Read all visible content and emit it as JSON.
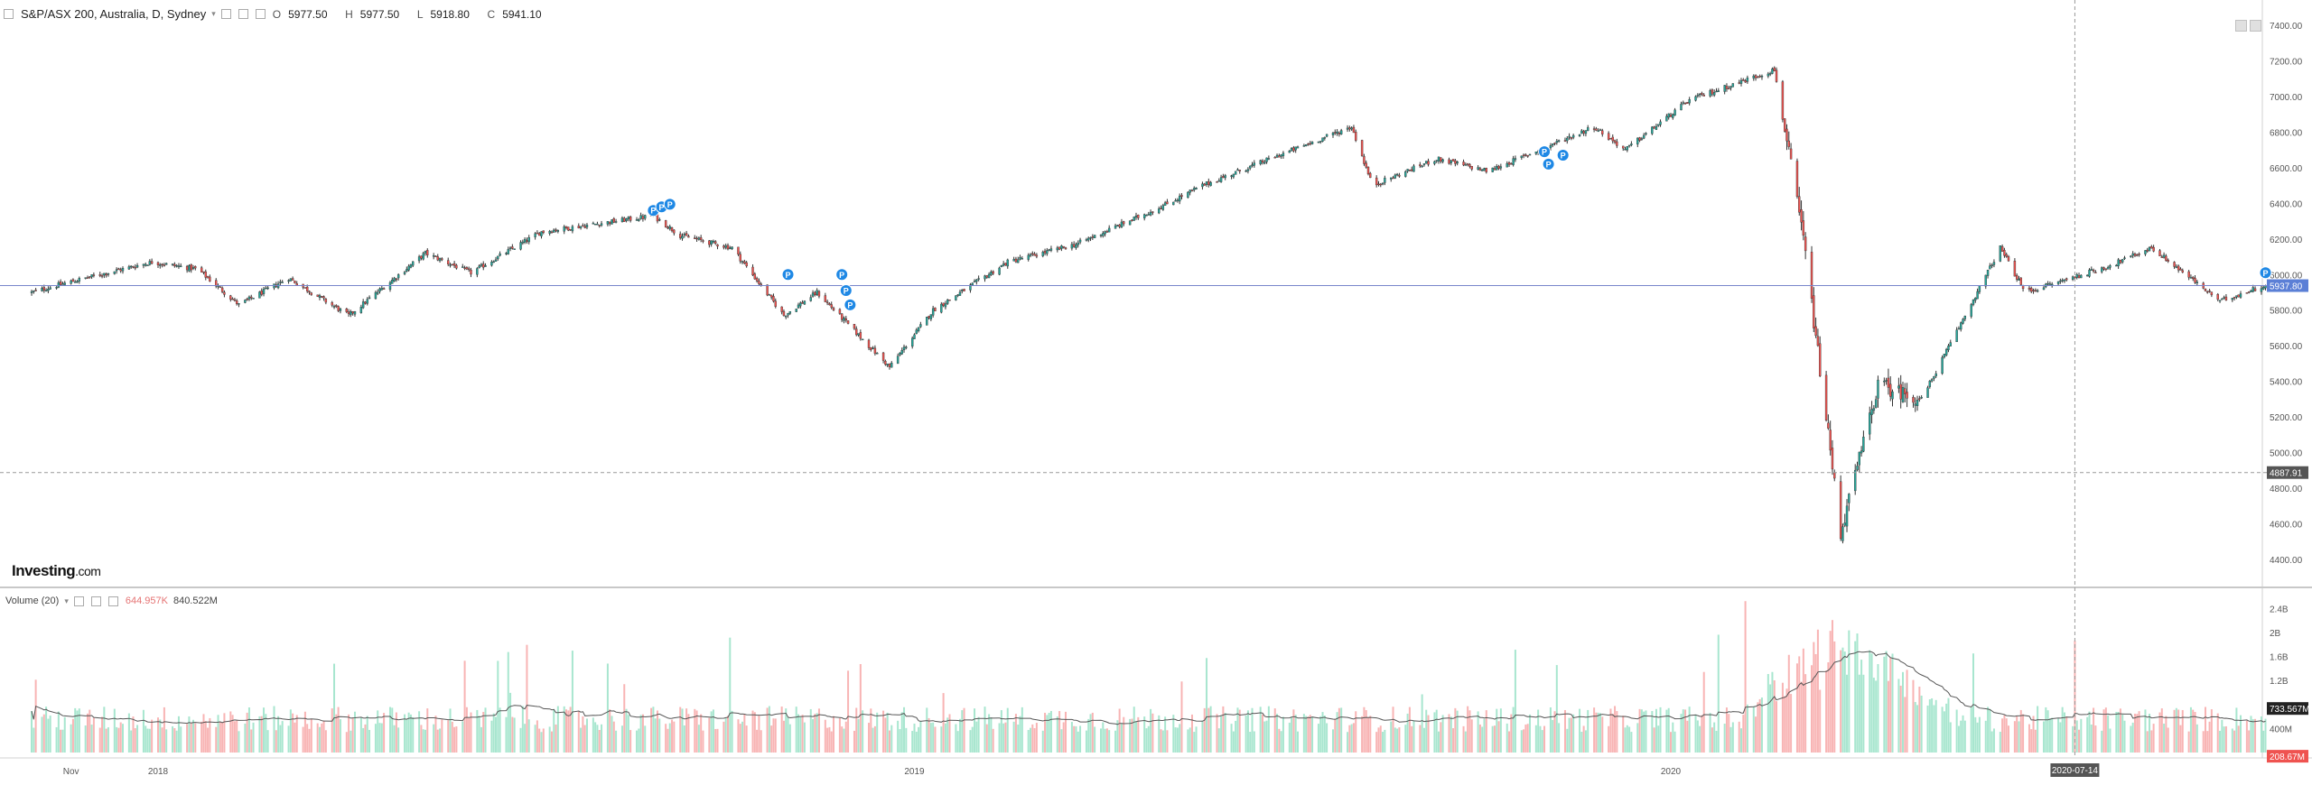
{
  "header": {
    "symbol_title": "S&P/ASX 200, Australia, D, Sydney",
    "ohlc": {
      "open_label": "O",
      "open": "5977.50",
      "high_label": "H",
      "high": "5977.50",
      "low_label": "L",
      "low": "5918.80",
      "close_label": "C",
      "close": "5941.10"
    }
  },
  "volume_legend": {
    "label": "Volume (20)",
    "value_1": "644.957K",
    "value_2": "840.522M"
  },
  "brand": {
    "name": "Investing",
    "suffix": ".com"
  },
  "price_axis_labels": [
    "7400.00",
    "7200.00",
    "7000.00",
    "6800.00",
    "6600.00",
    "6400.00",
    "6200.00",
    "6000.00",
    "5800.00",
    "5600.00",
    "5400.00",
    "5200.00",
    "5000.00",
    "4800.00",
    "4600.00",
    "4400.00"
  ],
  "volume_axis_labels": [
    "2.4B",
    "2B",
    "1.6B",
    "1.2B",
    "400M"
  ],
  "time_labels": [
    "Nov",
    "2018",
    "2019",
    "2020"
  ],
  "badges": {
    "last_price": "5937.80",
    "crosshair_price": "4887.91",
    "volume_ma": "733.567M",
    "volume_last": "208.67M",
    "crosshair_date": "2020-07-14"
  },
  "colors": {
    "up": "#26a69a",
    "down": "#ef5350",
    "vol_up": "#a8e6cf",
    "vol_down": "#f8b4b4",
    "ref_line": "#7986cb",
    "badge_blue": "#5b7fd6",
    "event": "#1e88e5"
  },
  "event_marker_label": "P",
  "chart_data": [
    {
      "type": "candlestick",
      "title": "S&P/ASX 200, Australia, D, Sydney",
      "ylim": [
        4300,
        7500
      ],
      "x_range": [
        "2017-11",
        "2020-07"
      ],
      "close_anchors": [
        {
          "date": "2017-11-01",
          "value": 5900
        },
        {
          "date": "2017-11-20",
          "value": 5960
        },
        {
          "date": "2017-12-29",
          "value": 6070
        },
        {
          "date": "2018-01-20",
          "value": 6030
        },
        {
          "date": "2018-02-09",
          "value": 5830
        },
        {
          "date": "2018-03-05",
          "value": 5980
        },
        {
          "date": "2018-04-03",
          "value": 5770
        },
        {
          "date": "2018-05-10",
          "value": 6120
        },
        {
          "date": "2018-06-01",
          "value": 6010
        },
        {
          "date": "2018-07-05",
          "value": 6240
        },
        {
          "date": "2018-08-28",
          "value": 6330
        },
        {
          "date": "2018-09-10",
          "value": 6220
        },
        {
          "date": "2018-10-05",
          "value": 6150
        },
        {
          "date": "2018-10-30",
          "value": 5770
        },
        {
          "date": "2018-11-15",
          "value": 5900
        },
        {
          "date": "2018-12-20",
          "value": 5480
        },
        {
          "date": "2019-01-10",
          "value": 5800
        },
        {
          "date": "2019-02-15",
          "value": 6070
        },
        {
          "date": "2019-03-20",
          "value": 6170
        },
        {
          "date": "2019-04-30",
          "value": 6380
        },
        {
          "date": "2019-05-20",
          "value": 6500
        },
        {
          "date": "2019-07-31",
          "value": 6830
        },
        {
          "date": "2019-08-10",
          "value": 6500
        },
        {
          "date": "2019-09-10",
          "value": 6650
        },
        {
          "date": "2019-10-05",
          "value": 6580
        },
        {
          "date": "2019-11-25",
          "value": 6830
        },
        {
          "date": "2019-12-10",
          "value": 6700
        },
        {
          "date": "2020-01-10",
          "value": 6980
        },
        {
          "date": "2020-02-20",
          "value": 7150
        },
        {
          "date": "2020-03-05",
          "value": 6200
        },
        {
          "date": "2020-03-23",
          "value": 4550
        },
        {
          "date": "2020-04-10",
          "value": 5380
        },
        {
          "date": "2020-05-01",
          "value": 5300
        },
        {
          "date": "2020-06-08",
          "value": 6150
        },
        {
          "date": "2020-06-20",
          "value": 5900
        },
        {
          "date": "2020-07-31",
          "value": 6050
        },
        {
          "date": "2020-08-20",
          "value": 6150
        },
        {
          "date": "2020-09-22",
          "value": 5850
        },
        {
          "date": "2020-10-14",
          "value": 5941
        }
      ],
      "reference_price": 5937.8,
      "crosshair": {
        "price": 4887.91,
        "date": "2020-07-14"
      },
      "event_markers": [
        {
          "date": "2018-08-28",
          "price": 6360
        },
        {
          "date": "2018-09-01",
          "price": 6380
        },
        {
          "date": "2018-09-05",
          "price": 6395
        },
        {
          "date": "2018-11-01",
          "price": 6000
        },
        {
          "date": "2018-11-27",
          "price": 6000
        },
        {
          "date": "2018-11-29",
          "price": 5910
        },
        {
          "date": "2018-12-01",
          "price": 5830
        },
        {
          "date": "2019-11-01",
          "price": 6690
        },
        {
          "date": "2019-11-03",
          "price": 6620
        },
        {
          "date": "2019-11-10",
          "price": 6670
        },
        {
          "date": "2020-10-14",
          "price": 6010
        }
      ]
    },
    {
      "type": "bar",
      "title": "Volume (20)",
      "series": [
        {
          "name": "Volume (20)"
        }
      ],
      "ylim": [
        0,
        2600000000
      ],
      "moving_average_period": 20,
      "baseline_volume": 620000000,
      "spike_period": {
        "start": "2020-02-25",
        "end": "2020-04-20",
        "peak": 2300000000
      },
      "last_ma_value": 733567000,
      "last_value": 208670000
    }
  ]
}
